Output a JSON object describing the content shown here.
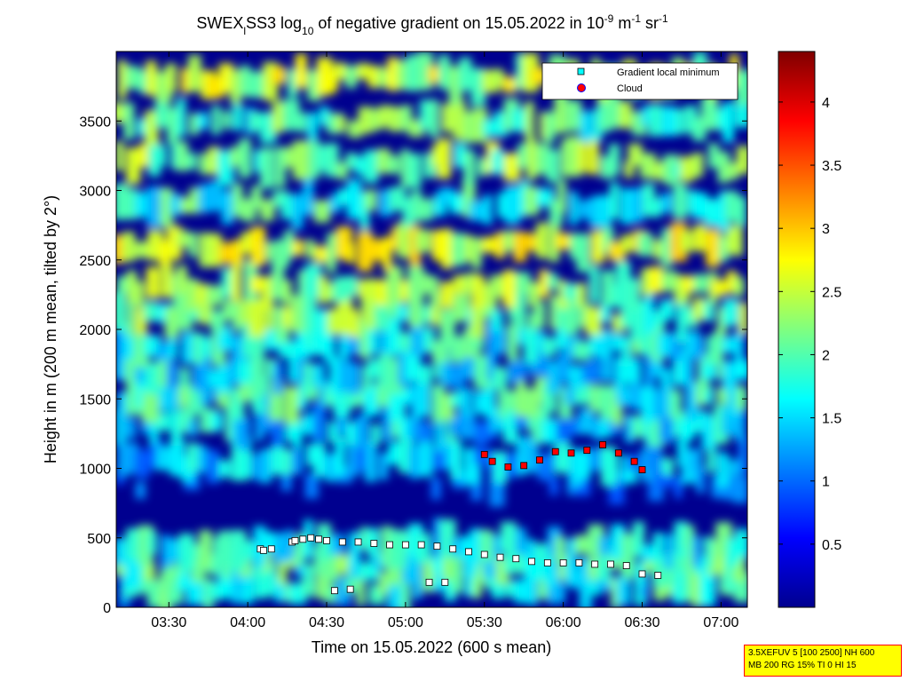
{
  "title_parts": {
    "a": "SWEX",
    "a_sub": "l",
    "b": "SS3 log",
    "b_sub": "10",
    "c": " of negative gradient on 15.05.2022 in 10",
    "c_sup": "-9",
    "d": " m",
    "d_sup": "-1",
    "e": " sr",
    "e_sup": "-1"
  },
  "xlabel": "Time on 15.05.2022 (600 s mean)",
  "ylabel": "Height in m (200 m mean, tilted by 2°)",
  "info_box": {
    "line1": "3.5XEFUV 5 [100 2500] NH 600",
    "line2": "MB 200 RG 15% TI 0 HI 15"
  },
  "colors": {
    "low": "#00008f",
    "high": "#7f0000",
    "marker_fill": "#ffffff",
    "cloud": "#ff0000"
  },
  "chart_data": {
    "type": "heatmap",
    "colormap": "jet",
    "xlim": [
      "03:10",
      "07:10"
    ],
    "ylim": [
      0,
      4000
    ],
    "zlim": [
      0,
      4.4
    ],
    "x_ticks": [
      "03:30",
      "04:00",
      "04:30",
      "05:00",
      "05:30",
      "06:00",
      "06:30",
      "07:00"
    ],
    "y_ticks": [
      0,
      500,
      1000,
      1500,
      2000,
      2500,
      3000,
      3500
    ],
    "colorbar_ticks": [
      0.5,
      1,
      1.5,
      2,
      2.5,
      3,
      3.5,
      4
    ],
    "legend_position": "top-right",
    "legend": [
      {
        "label": "Gradient local minimum",
        "marker": "square",
        "color": "#00ffff"
      },
      {
        "label": "Cloud",
        "marker": "circle",
        "color": "#ff0000"
      }
    ],
    "bands": [
      {
        "height": 150,
        "level": 1.8
      },
      {
        "height": 300,
        "level": 1.9
      },
      {
        "height": 450,
        "level": 1.7
      },
      {
        "height": 900,
        "level": 0.7
      },
      {
        "height": 1050,
        "level": 1.4
      },
      {
        "height": 1300,
        "level": 1.5
      },
      {
        "height": 1500,
        "level": 1.8
      },
      {
        "height": 1700,
        "level": 1.6
      },
      {
        "height": 1900,
        "level": 1.7
      },
      {
        "height": 2100,
        "level": 2.1
      },
      {
        "height": 2300,
        "level": 2.3
      },
      {
        "height": 2600,
        "level": 2.5
      },
      {
        "height": 2900,
        "level": 1.8
      },
      {
        "height": 3200,
        "level": 2.2
      },
      {
        "height": 3500,
        "level": 2.0
      },
      {
        "height": 3800,
        "level": 2.4
      }
    ],
    "layers": [
      {
        "name": "low",
        "points": [
          [
            0.58,
            420
          ],
          [
            0.6,
            410
          ],
          [
            0.65,
            420
          ],
          [
            0.78,
            470
          ],
          [
            0.8,
            480
          ],
          [
            0.85,
            490
          ],
          [
            0.9,
            500
          ],
          [
            0.95,
            490
          ],
          [
            1.0,
            480
          ],
          [
            1.1,
            470
          ],
          [
            1.2,
            470
          ],
          [
            1.3,
            460
          ],
          [
            1.4,
            450
          ],
          [
            1.5,
            450
          ],
          [
            1.6,
            450
          ],
          [
            1.7,
            440
          ],
          [
            1.8,
            420
          ],
          [
            1.9,
            400
          ],
          [
            2.0,
            380
          ],
          [
            2.1,
            360
          ],
          [
            2.2,
            350
          ],
          [
            2.3,
            330
          ],
          [
            2.4,
            320
          ],
          [
            2.5,
            320
          ],
          [
            2.6,
            320
          ],
          [
            2.7,
            310
          ],
          [
            2.8,
            310
          ],
          [
            2.9,
            300
          ],
          [
            3.0,
            240
          ],
          [
            3.1,
            230
          ]
        ]
      },
      {
        "name": "mid",
        "points": [
          [
            1.65,
            180
          ],
          [
            1.75,
            180
          ],
          [
            1.05,
            120
          ],
          [
            1.15,
            130
          ]
        ]
      },
      {
        "name": "cloud",
        "points": [
          [
            2.0,
            1100
          ],
          [
            2.05,
            1050
          ],
          [
            2.15,
            1010
          ],
          [
            2.25,
            1020
          ],
          [
            2.35,
            1060
          ],
          [
            2.45,
            1120
          ],
          [
            2.55,
            1110
          ],
          [
            2.65,
            1130
          ],
          [
            2.75,
            1170
          ],
          [
            2.85,
            1110
          ],
          [
            2.95,
            1050
          ],
          [
            3.0,
            990
          ]
        ]
      }
    ]
  }
}
